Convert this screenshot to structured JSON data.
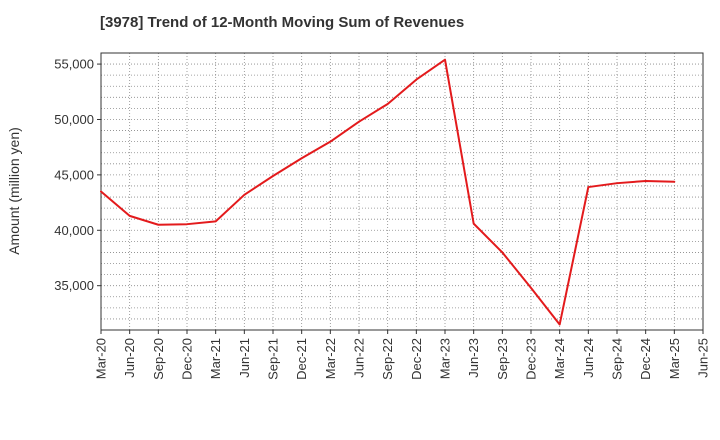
{
  "chart_data": {
    "type": "line",
    "title": "[3978]  Trend of 12-Month Moving Sum of Revenues",
    "xlabel": "",
    "ylabel": "Amount (million yen)",
    "categories": [
      "Mar-20",
      "Jun-20",
      "Sep-20",
      "Dec-20",
      "Mar-21",
      "Jun-21",
      "Sep-21",
      "Dec-21",
      "Mar-22",
      "Jun-22",
      "Sep-22",
      "Dec-22",
      "Mar-23",
      "Jun-23",
      "Sep-23",
      "Dec-23",
      "Mar-24",
      "Jun-24",
      "Sep-24",
      "Dec-24",
      "Mar-25",
      "Jun-25"
    ],
    "ylim": [
      31000,
      56000
    ],
    "yticks": [
      35000,
      40000,
      45000,
      50000,
      55000
    ],
    "ytick_labels": [
      "35,000",
      "40,000",
      "45,000",
      "50,000",
      "55,000"
    ],
    "grid": true,
    "series": [
      {
        "color": "#e31a1c",
        "values": [
          43500,
          41300,
          40500,
          40550,
          40800,
          43200,
          44900,
          46500,
          48000,
          49800,
          51400,
          53600,
          55400,
          40600,
          38000,
          34800,
          31500,
          43900,
          44250,
          44450,
          44380,
          null
        ]
      }
    ]
  }
}
